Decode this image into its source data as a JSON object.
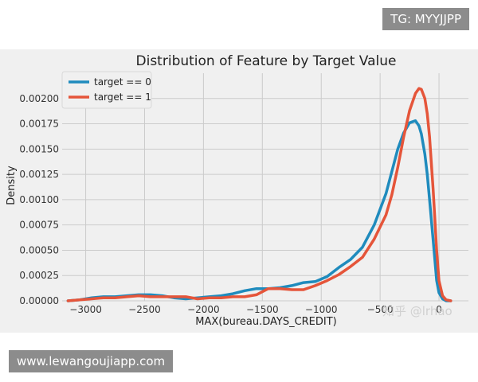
{
  "overlays": {
    "top_badge": "TG: MYYJJPP",
    "bottom_badge": "www.lewangoujiapp.com",
    "watermark": "知乎 @lrhao"
  },
  "chart_data": {
    "type": "line",
    "title": "Distribution of Feature by Target Value",
    "xlabel": "MAX(bureau.DAYS_CREDIT)",
    "ylabel": "Density",
    "xlim": [
      -3200,
      250
    ],
    "ylim": [
      0,
      0.00225
    ],
    "xticks": [
      -3000,
      -2500,
      -2000,
      -1500,
      -1000,
      -500,
      0
    ],
    "xtick_labels": [
      "−3000",
      "−2500",
      "−2000",
      "−1500",
      "−1000",
      "−500",
      "0"
    ],
    "yticks": [
      0,
      0.00025,
      0.0005,
      0.00075,
      0.001,
      0.00125,
      0.0015,
      0.00175,
      0.002
    ],
    "ytick_labels": [
      "0.00000",
      "0.00025",
      "0.00050",
      "0.00075",
      "0.00100",
      "0.00125",
      "0.00150",
      "0.00175",
      "0.00200"
    ],
    "grid": true,
    "legend": "top-left",
    "series": [
      {
        "name": "target == 0",
        "color": "#1f8bbd",
        "x": [
          -3150,
          -3050,
          -2950,
          -2850,
          -2750,
          -2650,
          -2550,
          -2450,
          -2350,
          -2250,
          -2150,
          -2050,
          -1950,
          -1850,
          -1750,
          -1650,
          -1550,
          -1450,
          -1350,
          -1250,
          -1150,
          -1050,
          -950,
          -850,
          -750,
          -650,
          -550,
          -450,
          -400,
          -350,
          -300,
          -250,
          -200,
          -170,
          -150,
          -120,
          -100,
          -80,
          -50,
          -20,
          0,
          30,
          60,
          100
        ],
        "y": [
          0.0,
          1e-05,
          3e-05,
          4e-05,
          4e-05,
          5e-05,
          6e-05,
          6e-05,
          5e-05,
          3e-05,
          2e-05,
          3e-05,
          4e-05,
          5e-05,
          7e-05,
          0.0001,
          0.00012,
          0.00012,
          0.00013,
          0.00015,
          0.00018,
          0.00019,
          0.00024,
          0.00033,
          0.00041,
          0.00053,
          0.00075,
          0.00106,
          0.00128,
          0.0015,
          0.00166,
          0.00176,
          0.00178,
          0.00173,
          0.00165,
          0.00145,
          0.00125,
          0.001,
          0.0006,
          0.0002,
          8e-05,
          2e-05,
          0.0,
          0.0
        ]
      },
      {
        "name": "target == 1",
        "color": "#e5553a",
        "x": [
          -3150,
          -3050,
          -2950,
          -2850,
          -2750,
          -2650,
          -2550,
          -2450,
          -2350,
          -2250,
          -2150,
          -2050,
          -1950,
          -1850,
          -1750,
          -1650,
          -1550,
          -1450,
          -1350,
          -1250,
          -1150,
          -1050,
          -950,
          -850,
          -750,
          -650,
          -550,
          -450,
          -400,
          -350,
          -300,
          -250,
          -200,
          -170,
          -150,
          -120,
          -100,
          -80,
          -50,
          -20,
          0,
          30,
          60,
          100
        ],
        "y": [
          0.0,
          1e-05,
          2e-05,
          3e-05,
          3e-05,
          4e-05,
          5e-05,
          4e-05,
          4e-05,
          4e-05,
          4e-05,
          2e-05,
          3e-05,
          3e-05,
          4e-05,
          4e-05,
          6e-05,
          0.00012,
          0.00012,
          0.00011,
          0.00011,
          0.00015,
          0.0002,
          0.00026,
          0.00034,
          0.00043,
          0.00061,
          0.00085,
          0.00105,
          0.00132,
          0.00162,
          0.00188,
          0.00205,
          0.0021,
          0.00209,
          0.002,
          0.00185,
          0.00162,
          0.0011,
          0.0005,
          0.0002,
          5e-05,
          1e-05,
          0.0
        ]
      }
    ]
  }
}
